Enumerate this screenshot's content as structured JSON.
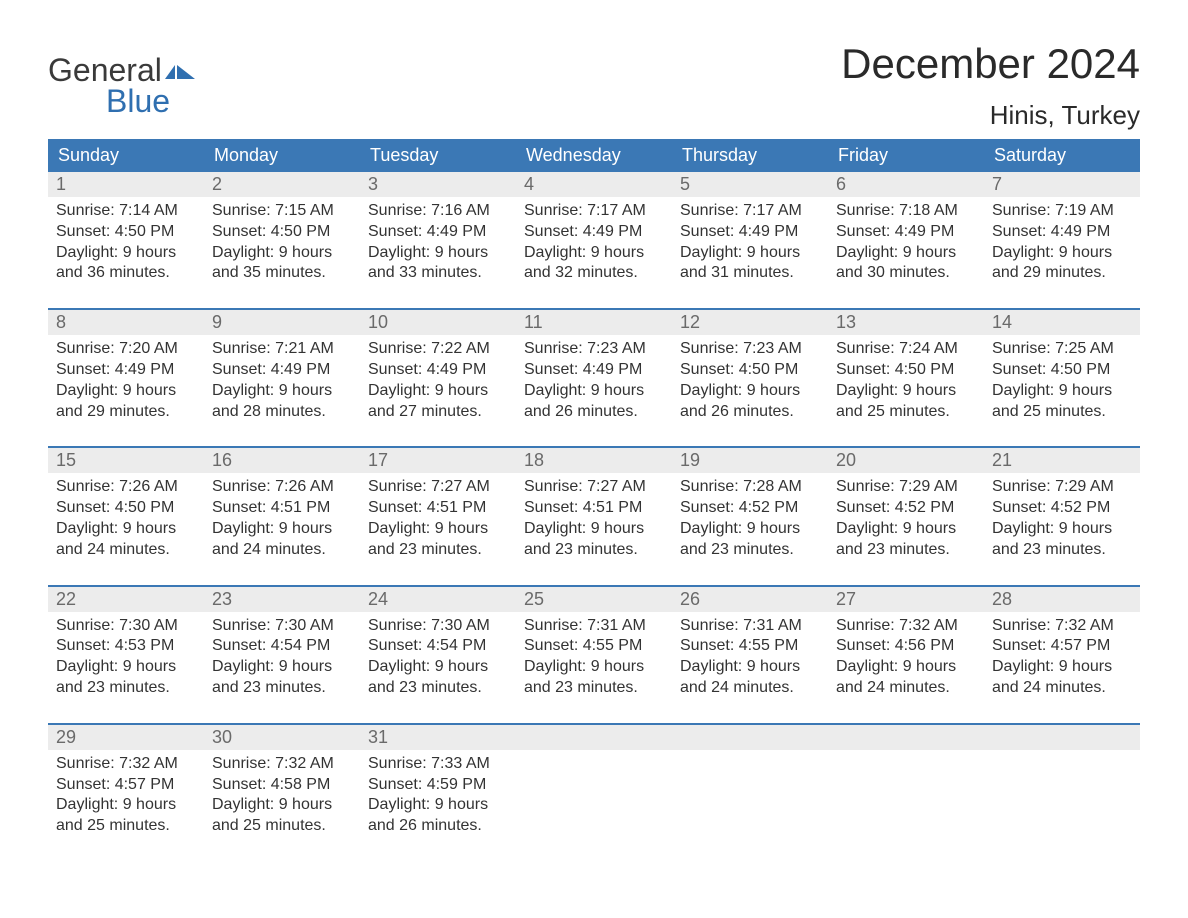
{
  "brand": {
    "word1": "General",
    "word2": "Blue",
    "flag_color": "#2f6fb0"
  },
  "title": "December 2024",
  "location": "Hinis, Turkey",
  "colors": {
    "header_bg": "#3b78b5",
    "header_text": "#ffffff",
    "daynum_bg": "#ececec",
    "daynum_text": "#6a6a6a",
    "body_text": "#333333",
    "separator": "#3b78b5",
    "page_bg": "#ffffff"
  },
  "typography": {
    "title_fontsize": 42,
    "location_fontsize": 26,
    "header_fontsize": 18,
    "daynum_fontsize": 18,
    "cell_fontsize": 16
  },
  "day_labels": [
    "Sunday",
    "Monday",
    "Tuesday",
    "Wednesday",
    "Thursday",
    "Friday",
    "Saturday"
  ],
  "weeks": [
    [
      {
        "n": "1",
        "sunrise": "7:14 AM",
        "sunset": "4:50 PM",
        "daylight": "9 hours and 36 minutes."
      },
      {
        "n": "2",
        "sunrise": "7:15 AM",
        "sunset": "4:50 PM",
        "daylight": "9 hours and 35 minutes."
      },
      {
        "n": "3",
        "sunrise": "7:16 AM",
        "sunset": "4:49 PM",
        "daylight": "9 hours and 33 minutes."
      },
      {
        "n": "4",
        "sunrise": "7:17 AM",
        "sunset": "4:49 PM",
        "daylight": "9 hours and 32 minutes."
      },
      {
        "n": "5",
        "sunrise": "7:17 AM",
        "sunset": "4:49 PM",
        "daylight": "9 hours and 31 minutes."
      },
      {
        "n": "6",
        "sunrise": "7:18 AM",
        "sunset": "4:49 PM",
        "daylight": "9 hours and 30 minutes."
      },
      {
        "n": "7",
        "sunrise": "7:19 AM",
        "sunset": "4:49 PM",
        "daylight": "9 hours and 29 minutes."
      }
    ],
    [
      {
        "n": "8",
        "sunrise": "7:20 AM",
        "sunset": "4:49 PM",
        "daylight": "9 hours and 29 minutes."
      },
      {
        "n": "9",
        "sunrise": "7:21 AM",
        "sunset": "4:49 PM",
        "daylight": "9 hours and 28 minutes."
      },
      {
        "n": "10",
        "sunrise": "7:22 AM",
        "sunset": "4:49 PM",
        "daylight": "9 hours and 27 minutes."
      },
      {
        "n": "11",
        "sunrise": "7:23 AM",
        "sunset": "4:49 PM",
        "daylight": "9 hours and 26 minutes."
      },
      {
        "n": "12",
        "sunrise": "7:23 AM",
        "sunset": "4:50 PM",
        "daylight": "9 hours and 26 minutes."
      },
      {
        "n": "13",
        "sunrise": "7:24 AM",
        "sunset": "4:50 PM",
        "daylight": "9 hours and 25 minutes."
      },
      {
        "n": "14",
        "sunrise": "7:25 AM",
        "sunset": "4:50 PM",
        "daylight": "9 hours and 25 minutes."
      }
    ],
    [
      {
        "n": "15",
        "sunrise": "7:26 AM",
        "sunset": "4:50 PM",
        "daylight": "9 hours and 24 minutes."
      },
      {
        "n": "16",
        "sunrise": "7:26 AM",
        "sunset": "4:51 PM",
        "daylight": "9 hours and 24 minutes."
      },
      {
        "n": "17",
        "sunrise": "7:27 AM",
        "sunset": "4:51 PM",
        "daylight": "9 hours and 23 minutes."
      },
      {
        "n": "18",
        "sunrise": "7:27 AM",
        "sunset": "4:51 PM",
        "daylight": "9 hours and 23 minutes."
      },
      {
        "n": "19",
        "sunrise": "7:28 AM",
        "sunset": "4:52 PM",
        "daylight": "9 hours and 23 minutes."
      },
      {
        "n": "20",
        "sunrise": "7:29 AM",
        "sunset": "4:52 PM",
        "daylight": "9 hours and 23 minutes."
      },
      {
        "n": "21",
        "sunrise": "7:29 AM",
        "sunset": "4:52 PM",
        "daylight": "9 hours and 23 minutes."
      }
    ],
    [
      {
        "n": "22",
        "sunrise": "7:30 AM",
        "sunset": "4:53 PM",
        "daylight": "9 hours and 23 minutes."
      },
      {
        "n": "23",
        "sunrise": "7:30 AM",
        "sunset": "4:54 PM",
        "daylight": "9 hours and 23 minutes."
      },
      {
        "n": "24",
        "sunrise": "7:30 AM",
        "sunset": "4:54 PM",
        "daylight": "9 hours and 23 minutes."
      },
      {
        "n": "25",
        "sunrise": "7:31 AM",
        "sunset": "4:55 PM",
        "daylight": "9 hours and 23 minutes."
      },
      {
        "n": "26",
        "sunrise": "7:31 AM",
        "sunset": "4:55 PM",
        "daylight": "9 hours and 24 minutes."
      },
      {
        "n": "27",
        "sunrise": "7:32 AM",
        "sunset": "4:56 PM",
        "daylight": "9 hours and 24 minutes."
      },
      {
        "n": "28",
        "sunrise": "7:32 AM",
        "sunset": "4:57 PM",
        "daylight": "9 hours and 24 minutes."
      }
    ],
    [
      {
        "n": "29",
        "sunrise": "7:32 AM",
        "sunset": "4:57 PM",
        "daylight": "9 hours and 25 minutes."
      },
      {
        "n": "30",
        "sunrise": "7:32 AM",
        "sunset": "4:58 PM",
        "daylight": "9 hours and 25 minutes."
      },
      {
        "n": "31",
        "sunrise": "7:33 AM",
        "sunset": "4:59 PM",
        "daylight": "9 hours and 26 minutes."
      },
      null,
      null,
      null,
      null
    ]
  ],
  "labels": {
    "sunrise": "Sunrise:",
    "sunset": "Sunset:",
    "daylight": "Daylight:"
  }
}
